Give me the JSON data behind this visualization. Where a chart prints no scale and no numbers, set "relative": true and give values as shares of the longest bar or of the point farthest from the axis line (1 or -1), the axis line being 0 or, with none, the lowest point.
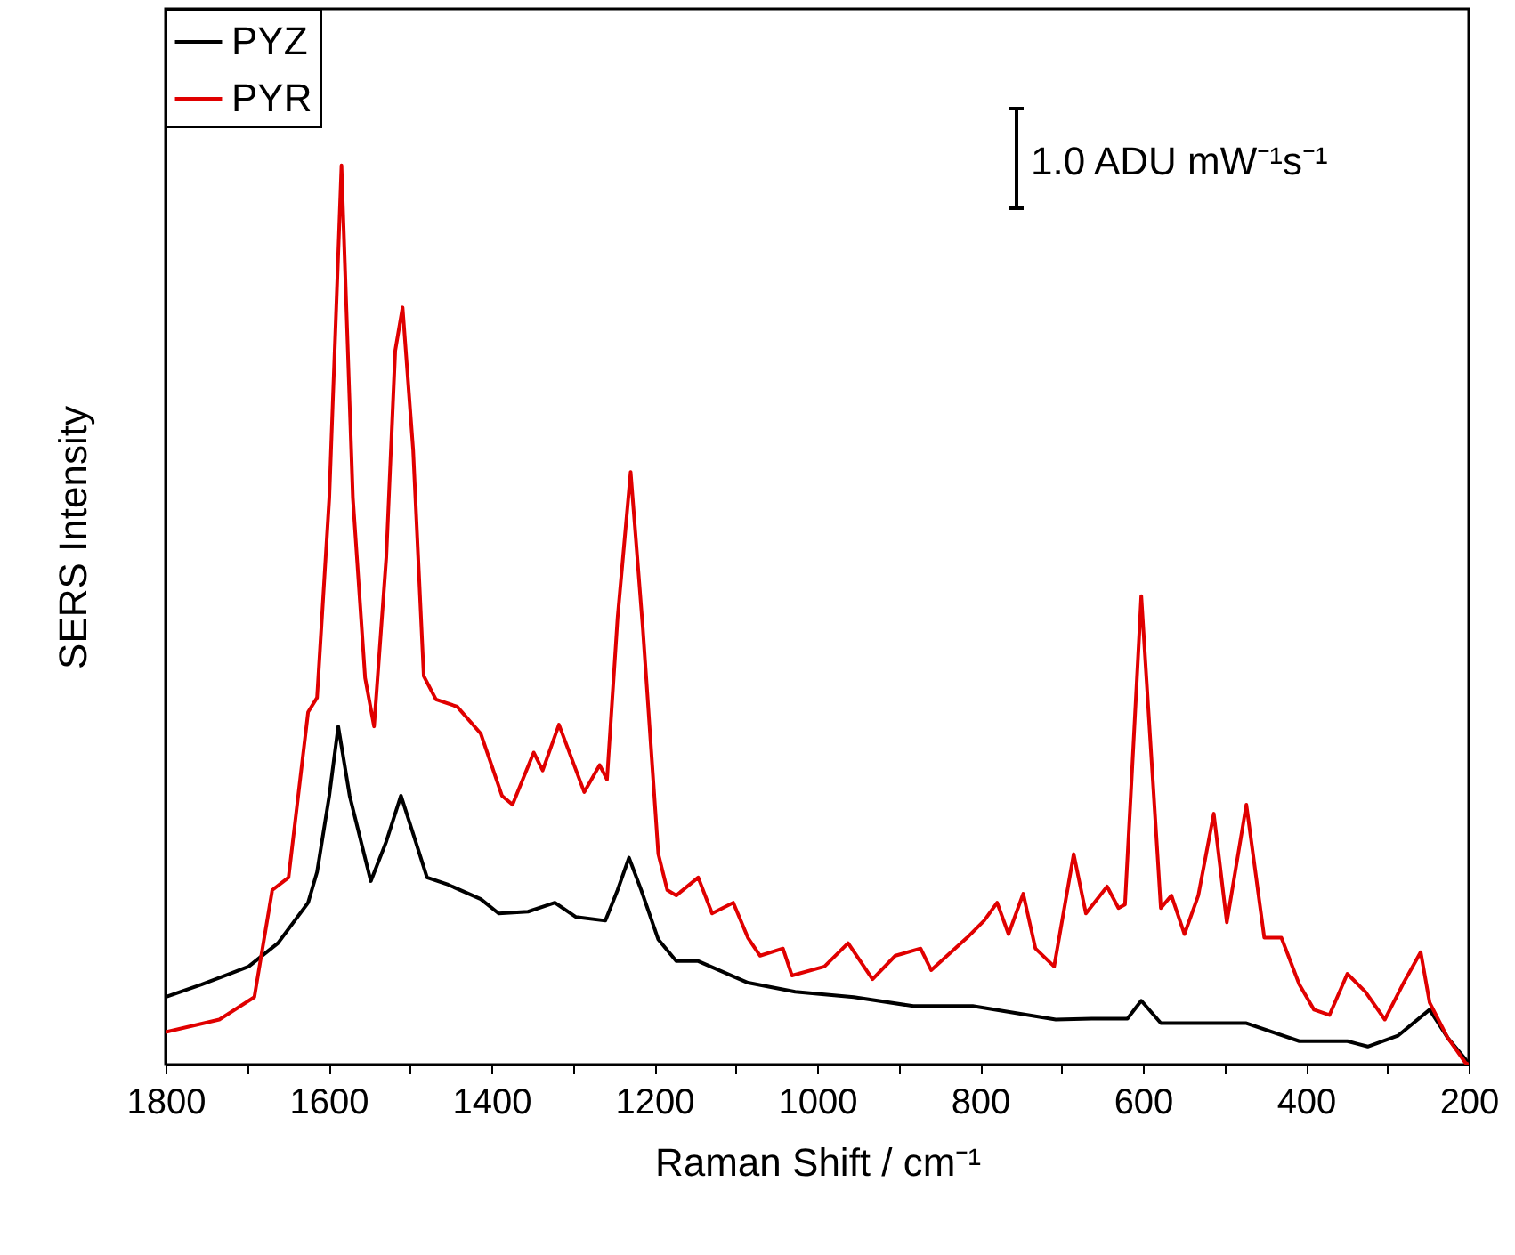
{
  "chart_data": {
    "type": "line",
    "xlabel": "Raman Shift / cm⁻¹",
    "ylabel": "SERS Intensity",
    "relative": true,
    "legend": "top left",
    "xlim": [
      1800,
      200
    ],
    "xticks": [
      1800,
      {
        "value": 1700,
        "label": null
      },
      1600,
      {
        "value": 1500,
        "label": null
      },
      1400,
      {
        "value": 1300,
        "label": null
      },
      1200,
      {
        "value": 1100,
        "label": null
      },
      1000,
      {
        "value": 900,
        "label": null
      },
      800,
      {
        "value": 700,
        "label": null
      },
      600,
      {
        "value": 500,
        "label": null
      },
      400,
      {
        "value": 300,
        "label": null
      },
      200
    ],
    "annotations": [
      "1.0 ADU mW⁻¹s⁻¹"
    ],
    "series": [
      {
        "name": "PYZ",
        "color": "#000000",
        "x": [
          1800,
          1756,
          1698,
          1662,
          1625,
          1614,
          1599,
          1588,
          1574,
          1548,
          1529,
          1511,
          1493,
          1479,
          1453,
          1413,
          1391,
          1355,
          1322,
          1296,
          1260,
          1245,
          1231,
          1216,
          1195,
          1173,
          1146,
          1085,
          1027,
          955,
          882,
          809,
          707,
          663,
          619,
          602,
          578,
          517,
          473,
          408,
          349,
          324,
          287,
          248,
          226,
          204,
          200
        ],
        "values": [
          0.075,
          0.089,
          0.109,
          0.135,
          0.18,
          0.214,
          0.299,
          0.376,
          0.299,
          0.204,
          0.248,
          0.299,
          0.248,
          0.208,
          0.2,
          0.184,
          0.168,
          0.17,
          0.18,
          0.164,
          0.16,
          0.194,
          0.23,
          0.194,
          0.139,
          0.115,
          0.115,
          0.091,
          0.081,
          0.075,
          0.065,
          0.065,
          0.05,
          0.051,
          0.051,
          0.071,
          0.046,
          0.046,
          0.046,
          0.026,
          0.026,
          0.02,
          0.032,
          0.061,
          0.03,
          0.006,
          0
        ]
      },
      {
        "name": "PYR",
        "color": "#e00000",
        "x": [
          1800,
          1734,
          1691,
          1669,
          1649,
          1625,
          1614,
          1599,
          1584,
          1570,
          1555,
          1544,
          1529,
          1518,
          1509,
          1496,
          1483,
          1468,
          1442,
          1413,
          1387,
          1374,
          1348,
          1337,
          1317,
          1286,
          1267,
          1258,
          1245,
          1229,
          1214,
          1195,
          1184,
          1173,
          1146,
          1129,
          1103,
          1085,
          1070,
          1042,
          1031,
          991,
          962,
          932,
          904,
          873,
          860,
          816,
          795,
          779,
          765,
          747,
          732,
          709,
          685,
          670,
          644,
          630,
          622,
          602,
          578,
          565,
          549,
          532,
          513,
          497,
          473,
          451,
          430,
          408,
          390,
          371,
          349,
          327,
          303,
          281,
          259,
          248,
          226,
          204,
          200
        ],
        "values": [
          0.036,
          0.05,
          0.075,
          0.194,
          0.208,
          0.392,
          0.408,
          0.63,
          1.0,
          0.63,
          0.43,
          0.376,
          0.564,
          0.794,
          0.842,
          0.683,
          0.432,
          0.406,
          0.398,
          0.368,
          0.299,
          0.289,
          0.347,
          0.327,
          0.378,
          0.303,
          0.333,
          0.317,
          0.497,
          0.659,
          0.485,
          0.234,
          0.194,
          0.188,
          0.208,
          0.168,
          0.18,
          0.141,
          0.121,
          0.129,
          0.099,
          0.109,
          0.135,
          0.095,
          0.121,
          0.129,
          0.105,
          0.141,
          0.16,
          0.18,
          0.145,
          0.19,
          0.129,
          0.109,
          0.234,
          0.168,
          0.198,
          0.174,
          0.178,
          0.521,
          0.174,
          0.188,
          0.145,
          0.188,
          0.279,
          0.158,
          0.289,
          0.141,
          0.141,
          0.089,
          0.061,
          0.055,
          0.101,
          0.081,
          0.05,
          0.089,
          0.125,
          0.069,
          0.03,
          0.002,
          0
        ]
      }
    ]
  }
}
